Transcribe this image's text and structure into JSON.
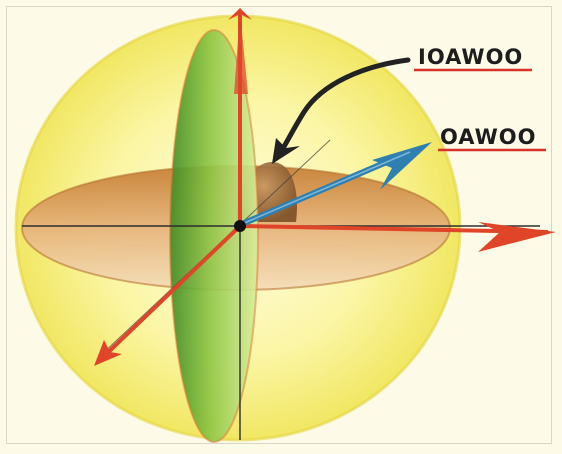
{
  "labels": {
    "upper": "IOAWOO",
    "lower": "OAWOO"
  },
  "colors": {
    "sphere": "#f3ee6c",
    "vertical_plane": "#7fb83a",
    "horizontal_plane": "#d79a4c",
    "cap": "#9a6a3a",
    "axis_arrow": "#e0452a",
    "vector_arrow": "#2f7fb0",
    "pointer_arrow": "#222222",
    "label_text": "#1d1d1d",
    "label_underline": "#d8322a"
  }
}
